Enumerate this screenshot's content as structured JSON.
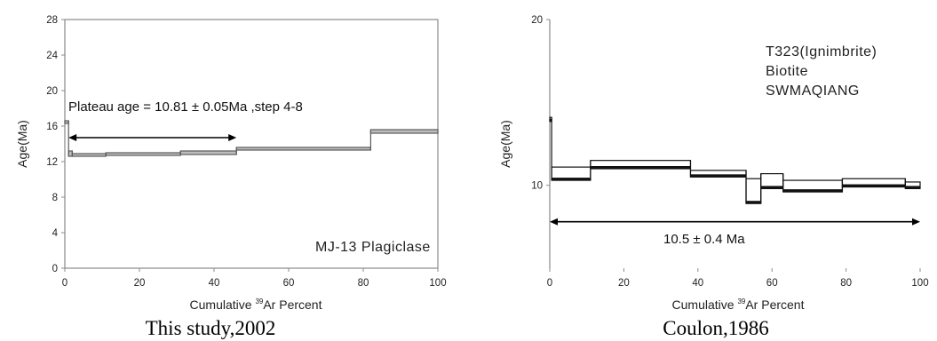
{
  "chart_data": [
    {
      "type": "line",
      "step_plot": true,
      "xlabel": "Cumulative",
      "xlabel_sup": "39",
      "xlabel_tail": "Ar Percent",
      "ylabel": "Age(Ma)",
      "xlim": [
        0,
        100
      ],
      "ylim": [
        0,
        28
      ],
      "xticks": [
        0,
        20,
        40,
        60,
        80,
        100
      ],
      "yticks": [
        0,
        4,
        8,
        12,
        16,
        20,
        24,
        28
      ],
      "grid": false,
      "steps": [
        {
          "x0": 0,
          "x1": 1,
          "y_low": 16.3,
          "y_high": 16.6
        },
        {
          "x0": 1,
          "x1": 2,
          "y_low": 12.6,
          "y_high": 13.2
        },
        {
          "x0": 2,
          "x1": 11,
          "y_low": 12.6,
          "y_high": 12.9
        },
        {
          "x0": 11,
          "x1": 31,
          "y_low": 12.7,
          "y_high": 13.0
        },
        {
          "x0": 31,
          "x1": 46,
          "y_low": 12.8,
          "y_high": 13.2
        },
        {
          "x0": 46,
          "x1": 82,
          "y_low": 13.3,
          "y_high": 13.6
        },
        {
          "x0": 82,
          "x1": 100,
          "y_low": 15.2,
          "y_high": 15.6
        }
      ],
      "plateau": {
        "x_start": 1,
        "x_end": 46,
        "y": 14.7,
        "label": "Plateau age = 10.81 ± 0.05Ma ,step 4-8"
      },
      "annotation": "MJ-13 Plagiclase",
      "caption": "This study,2002"
    },
    {
      "type": "line",
      "step_plot": true,
      "xlabel": "Cumulative",
      "xlabel_sup": "39",
      "xlabel_tail": "Ar Percent",
      "ylabel": "Age(Ma)",
      "xlim": [
        0,
        100
      ],
      "ylim": [
        5,
        20
      ],
      "xticks": [
        0,
        20,
        40,
        60,
        80,
        100
      ],
      "yticks": [
        10,
        20
      ],
      "grid": false,
      "steps": [
        {
          "x0": 0,
          "x1": 0.5,
          "y_low": 13.85,
          "y_high": 14.1
        },
        {
          "x0": 0.5,
          "x1": 11,
          "y_low": 10.3,
          "y_high": 11.1
        },
        {
          "x0": 11,
          "x1": 38,
          "y_low": 11.0,
          "y_high": 11.5
        },
        {
          "x0": 38,
          "x1": 53,
          "y_low": 10.5,
          "y_high": 10.9
        },
        {
          "x0": 53,
          "x1": 57,
          "y_low": 8.9,
          "y_high": 10.4
        },
        {
          "x0": 57,
          "x1": 63,
          "y_low": 9.8,
          "y_high": 10.7
        },
        {
          "x0": 63,
          "x1": 79,
          "y_low": 9.6,
          "y_high": 10.3
        },
        {
          "x0": 79,
          "x1": 96,
          "y_low": 9.9,
          "y_high": 10.4
        },
        {
          "x0": 96,
          "x1": 100,
          "y_low": 9.8,
          "y_high": 10.2
        }
      ],
      "plateau": {
        "x_start": 0,
        "x_end": 100,
        "y": 7.8,
        "label": "10.5 ± 0.4 Ma"
      },
      "annotation_lines": [
        "T323(Ignimbrite)",
        "Biotite",
        "SWMAQIANG"
      ],
      "caption": "Coulon,1986"
    }
  ]
}
